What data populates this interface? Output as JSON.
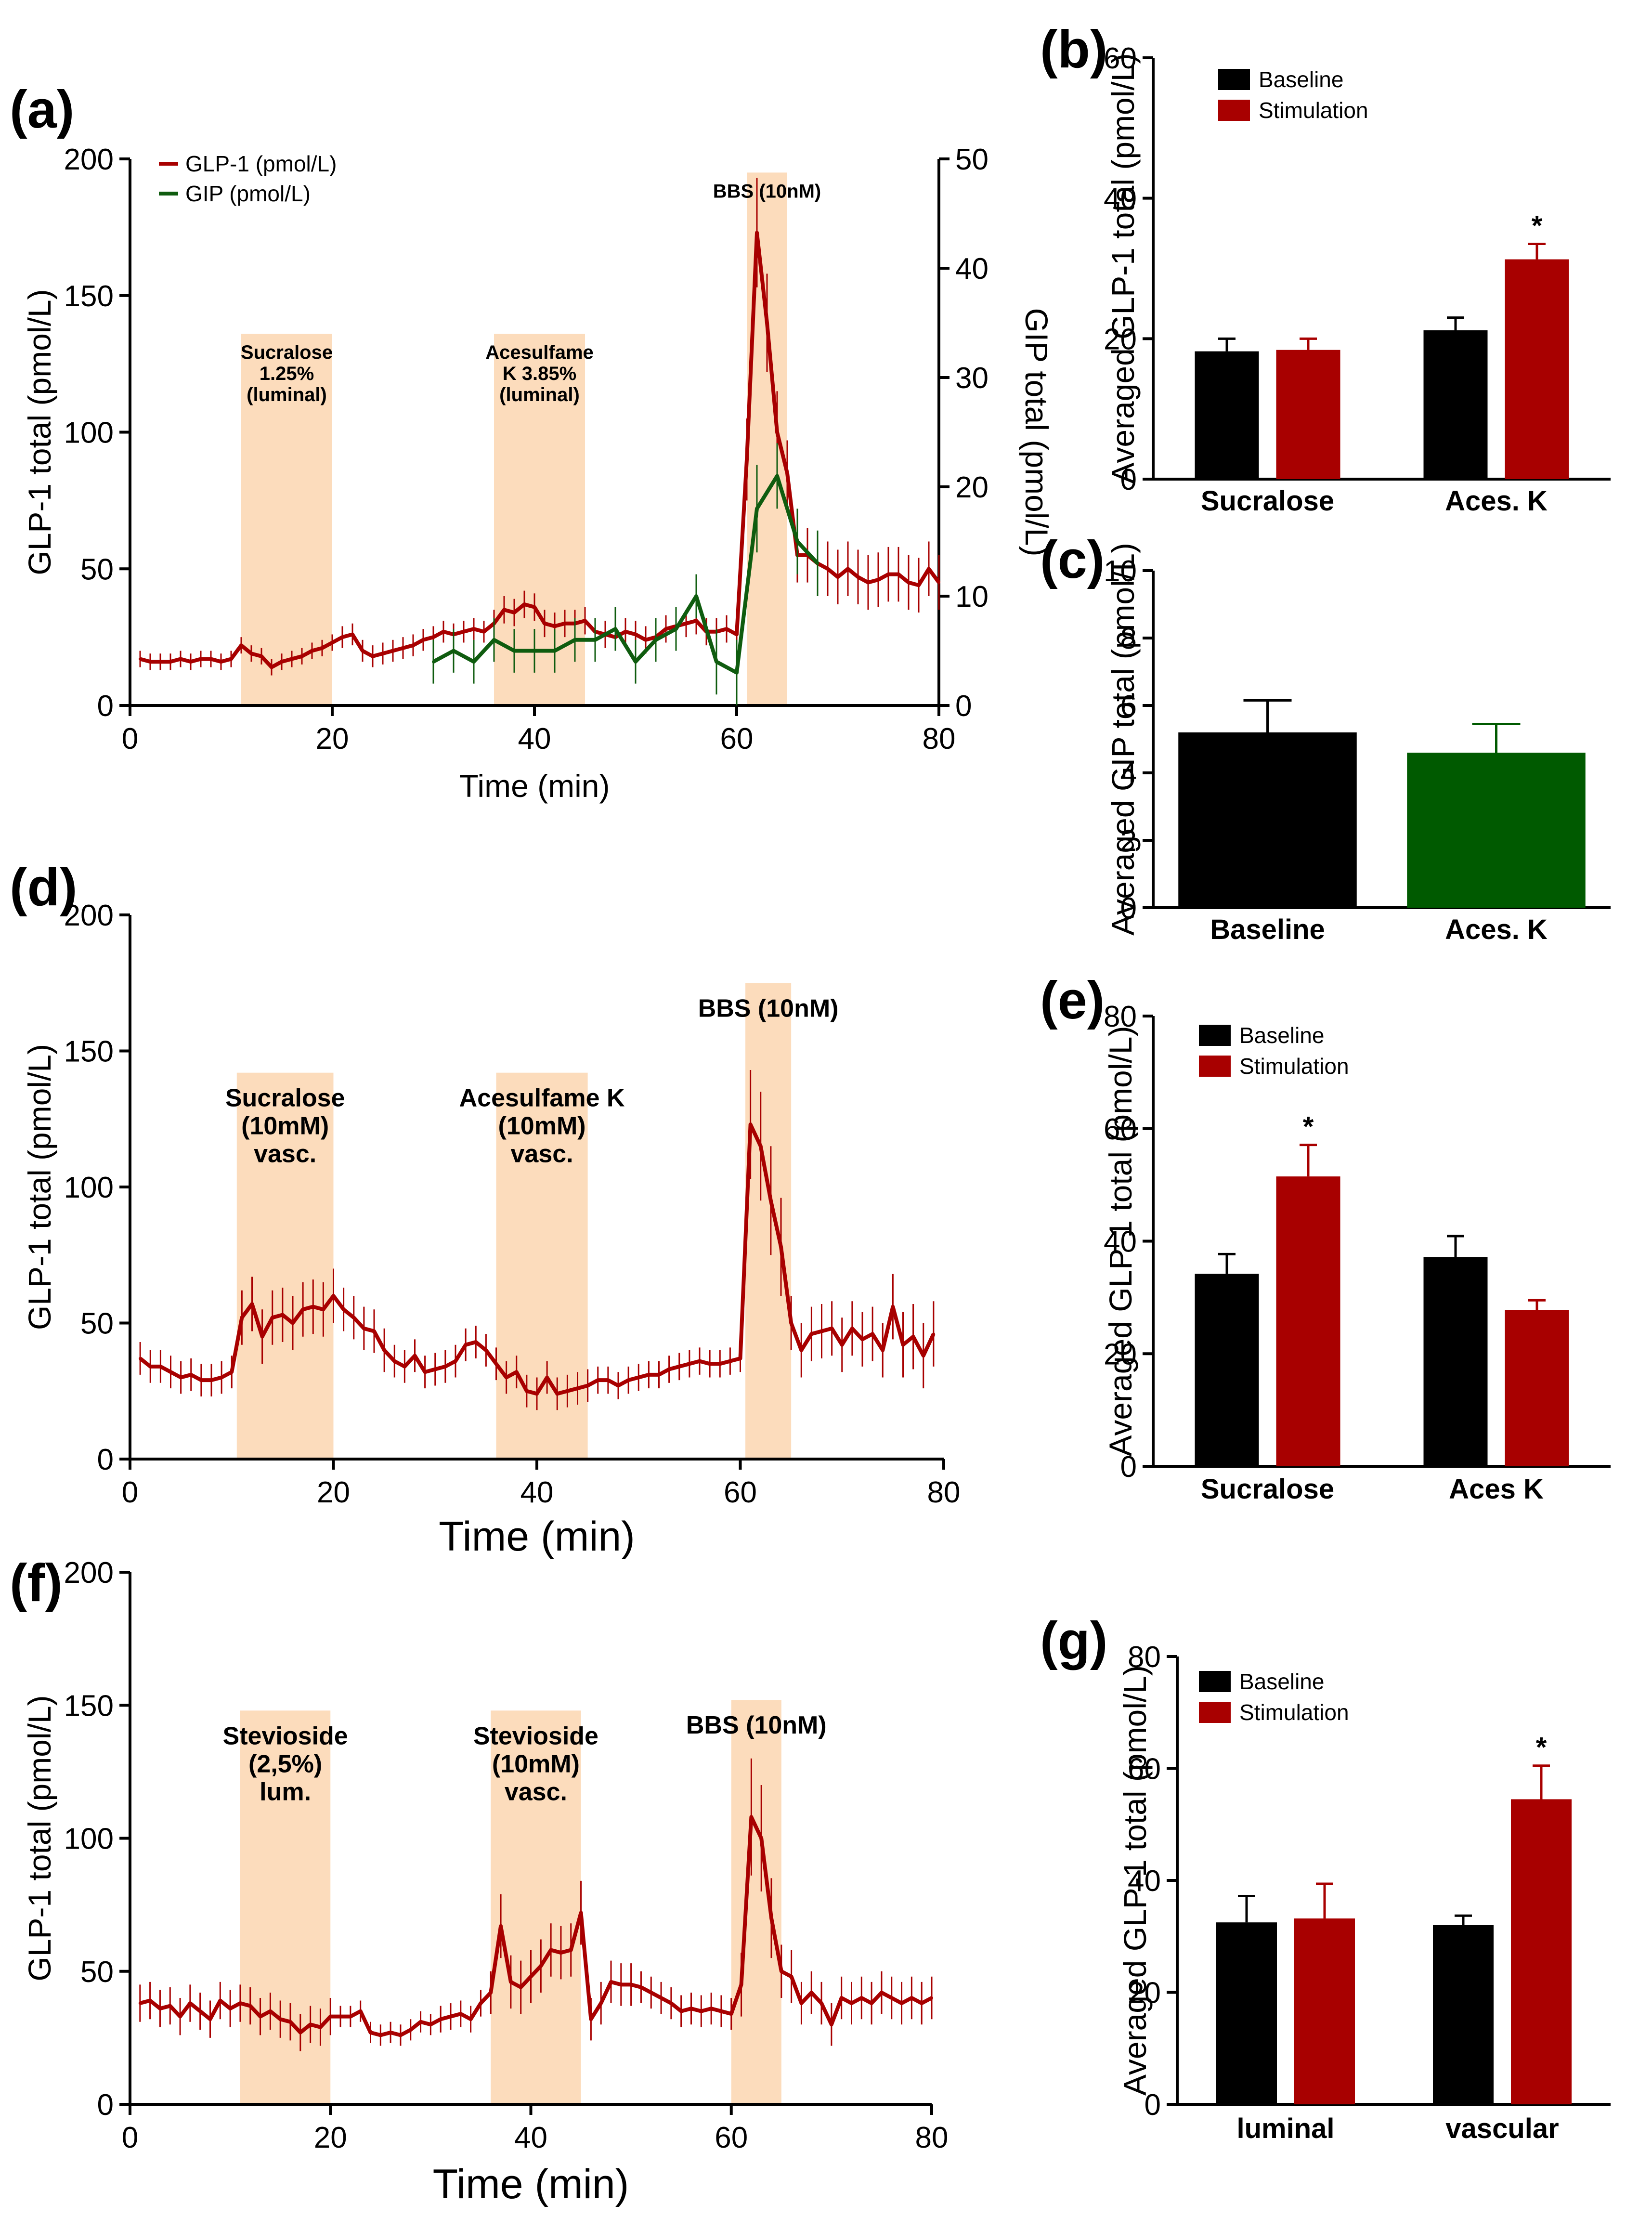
{
  "colors": {
    "glp1": "#a80000",
    "gip": "#0f5c0f",
    "band": "#fcdcbc",
    "baseline": "#000000",
    "stimulation": "#a80000",
    "gip_bar": "#005a00"
  },
  "chart_data": [
    {
      "id": "a",
      "type": "line",
      "letter": "(a)",
      "xlabel": "Time (min)",
      "ylabel": "GLP-1 total (pmol/L)",
      "y2label": "GIP total (pmol/L)",
      "xlim": [
        0,
        80
      ],
      "xticks": [
        0,
        20,
        40,
        60,
        80
      ],
      "ylim": [
        0,
        200
      ],
      "yticks": [
        0,
        50,
        100,
        150,
        200
      ],
      "y2lim": [
        0,
        50
      ],
      "y2ticks": [
        0,
        10,
        20,
        30,
        40,
        50
      ],
      "legend": [
        "GLP-1 (pmol/L)",
        "GIP (pmol/L)"
      ],
      "bands": [
        {
          "x0": 11,
          "x1": 20,
          "top": 136,
          "lines": [
            "Sucralose",
            "1.25%",
            "(luminal)"
          ]
        },
        {
          "x0": 36,
          "x1": 45,
          "top": 136,
          "lines": [
            "Acesulfame",
            "K 3.85%",
            "(luminal)"
          ]
        },
        {
          "x0": 61,
          "x1": 65,
          "top": 195,
          "lines": [
            "BBS (10nM)"
          ]
        }
      ],
      "series": [
        {
          "name": "GLP-1 (pmol/L)",
          "axis": "left",
          "x": [
            1,
            2,
            3,
            4,
            5,
            6,
            7,
            8,
            9,
            10,
            11,
            12,
            13,
            14,
            15,
            16,
            17,
            18,
            19,
            20,
            21,
            22,
            23,
            24,
            25,
            26,
            27,
            28,
            29,
            30,
            31,
            32,
            33,
            34,
            35,
            36,
            37,
            38,
            39,
            40,
            41,
            42,
            43,
            44,
            45,
            46,
            47,
            48,
            49,
            50,
            51,
            52,
            53,
            54,
            55,
            56,
            57,
            58,
            59,
            60,
            61,
            62,
            63,
            64,
            65,
            66,
            67,
            68,
            69,
            70,
            71,
            72,
            73,
            74,
            75,
            76,
            77,
            78,
            79,
            80
          ],
          "y": [
            17,
            16,
            16,
            16,
            17,
            16,
            17,
            17,
            16,
            17,
            22,
            19,
            18,
            14,
            16,
            17,
            18,
            20,
            21,
            23,
            25,
            26,
            20,
            18,
            19,
            20,
            21,
            22,
            24,
            25,
            27,
            26,
            27,
            28,
            27,
            30,
            35,
            34,
            37,
            36,
            30,
            29,
            30,
            30,
            31,
            27,
            26,
            25,
            27,
            26,
            24,
            25,
            28,
            29,
            30,
            31,
            27,
            27,
            28,
            26,
            90,
            173,
            140,
            100,
            85,
            55,
            55,
            52,
            50,
            47,
            50,
            47,
            45,
            46,
            48,
            48,
            45,
            44,
            50,
            45
          ],
          "err": [
            3,
            3,
            3,
            3,
            3,
            3,
            3,
            3,
            3,
            3,
            3,
            3,
            3,
            3,
            3,
            3,
            3,
            3,
            3,
            3,
            4,
            4,
            4,
            4,
            4,
            4,
            4,
            4,
            4,
            4,
            4,
            4,
            4,
            4,
            4,
            5,
            5,
            5,
            5,
            5,
            5,
            5,
            5,
            5,
            5,
            5,
            5,
            5,
            5,
            5,
            5,
            5,
            5,
            5,
            5,
            5,
            5,
            5,
            5,
            5,
            15,
            20,
            18,
            15,
            12,
            10,
            10,
            10,
            10,
            10,
            10,
            10,
            10,
            10,
            10,
            10,
            10,
            10,
            10,
            10
          ]
        },
        {
          "name": "GIP (pmol/L)",
          "axis": "right",
          "x": [
            30,
            32,
            34,
            36,
            38,
            40,
            42,
            44,
            46,
            48,
            50,
            52,
            54,
            56,
            58,
            60,
            62,
            64,
            66,
            68
          ],
          "y": [
            4,
            5,
            4,
            6,
            5,
            5,
            5,
            6,
            6,
            7,
            4,
            6,
            7,
            10,
            4,
            3,
            18,
            21,
            15,
            13
          ],
          "err": [
            2,
            2,
            2,
            2,
            2,
            2,
            2,
            2,
            2,
            2,
            2,
            2,
            2,
            2,
            3,
            3,
            4,
            3,
            3,
            3
          ]
        }
      ]
    },
    {
      "id": "b",
      "type": "bar",
      "letter": "(b)",
      "ylabel": "Averaged GLP-1 total (pmol/L)",
      "ylim": [
        0,
        60
      ],
      "yticks": [
        0,
        20,
        40,
        60
      ],
      "categories": [
        "Sucralose",
        "Aces. K"
      ],
      "legend": [
        "Baseline",
        "Stimulation"
      ],
      "series": [
        {
          "name": "Baseline",
          "values": [
            18.2,
            21.2
          ],
          "err": [
            1.8,
            1.8
          ]
        },
        {
          "name": "Stimulation",
          "values": [
            18.4,
            31.3
          ],
          "err": [
            1.6,
            2.2
          ]
        }
      ],
      "annotations": [
        {
          "text": "*",
          "category": 1,
          "series": 1
        }
      ]
    },
    {
      "id": "c",
      "type": "bar",
      "letter": "(c)",
      "ylabel": "Averaged GIP total (pmol/L)",
      "ylim": [
        0,
        10
      ],
      "yticks": [
        0,
        2,
        4,
        6,
        8,
        10
      ],
      "categories": [
        "Baseline",
        "Aces. K"
      ],
      "values": [
        5.2,
        4.6
      ],
      "err": [
        0.95,
        0.85
      ]
    },
    {
      "id": "d",
      "type": "line",
      "letter": "(d)",
      "xlabel": "Time (min)",
      "ylabel": "GLP-1 total (pmol/L)",
      "xlim": [
        0,
        80
      ],
      "xticks": [
        0,
        20,
        40,
        60,
        80
      ],
      "ylim": [
        0,
        200
      ],
      "yticks": [
        0,
        50,
        100,
        150,
        200
      ],
      "bands": [
        {
          "x0": 10.5,
          "x1": 20,
          "top": 142,
          "lines": [
            "Sucralose",
            "(10mM)",
            "vasc."
          ]
        },
        {
          "x0": 36,
          "x1": 45,
          "top": 142,
          "lines": [
            "Acesulfame K",
            "(10mM)",
            "vasc."
          ]
        },
        {
          "x0": 60.5,
          "x1": 65,
          "top": 175,
          "lines": [
            "BBS (10nM)"
          ]
        }
      ],
      "series": [
        {
          "name": "GLP-1",
          "axis": "left",
          "x": [
            1,
            2,
            3,
            4,
            5,
            6,
            7,
            8,
            9,
            10,
            11,
            12,
            13,
            14,
            15,
            16,
            17,
            18,
            19,
            20,
            21,
            22,
            23,
            24,
            25,
            26,
            27,
            28,
            29,
            30,
            31,
            32,
            33,
            34,
            35,
            36,
            37,
            38,
            39,
            40,
            41,
            42,
            43,
            44,
            45,
            46,
            47,
            48,
            49,
            50,
            51,
            52,
            53,
            54,
            55,
            56,
            57,
            58,
            59,
            60,
            61,
            62,
            63,
            64,
            65,
            66,
            67,
            68,
            69,
            70,
            71,
            72,
            73,
            74,
            75,
            76,
            77,
            78,
            79
          ],
          "y": [
            37,
            34,
            34,
            32,
            30,
            31,
            29,
            29,
            30,
            32,
            52,
            57,
            45,
            52,
            53,
            50,
            55,
            56,
            55,
            60,
            55,
            52,
            48,
            47,
            40,
            36,
            34,
            38,
            32,
            33,
            34,
            36,
            42,
            43,
            40,
            35,
            30,
            32,
            25,
            24,
            30,
            24,
            25,
            26,
            27,
            29,
            29,
            27,
            29,
            30,
            31,
            31,
            33,
            34,
            35,
            36,
            35,
            35,
            36,
            37,
            123,
            115,
            95,
            78,
            50,
            40,
            46,
            47,
            48,
            42,
            48,
            44,
            46,
            40,
            56,
            42,
            45,
            38,
            46
          ],
          "err": [
            6,
            6,
            6,
            6,
            6,
            6,
            6,
            6,
            6,
            6,
            10,
            10,
            10,
            10,
            10,
            10,
            10,
            10,
            10,
            10,
            8,
            8,
            8,
            8,
            8,
            6,
            6,
            6,
            6,
            6,
            6,
            6,
            6,
            6,
            6,
            6,
            6,
            6,
            6,
            6,
            6,
            6,
            6,
            6,
            6,
            5,
            5,
            5,
            5,
            5,
            5,
            5,
            5,
            5,
            5,
            5,
            5,
            5,
            5,
            5,
            20,
            20,
            20,
            18,
            10,
            10,
            10,
            10,
            10,
            10,
            10,
            10,
            10,
            10,
            12,
            12,
            12,
            12,
            12
          ]
        }
      ]
    },
    {
      "id": "e",
      "type": "bar",
      "letter": "(e)",
      "ylabel": "Averaged GLP-1 total (pmol/L)",
      "ylim": [
        0,
        80
      ],
      "yticks": [
        0,
        20,
        40,
        60,
        80
      ],
      "categories": [
        "Sucralose",
        "Aces K"
      ],
      "legend": [
        "Baseline",
        "Stimulation"
      ],
      "series": [
        {
          "name": "Baseline",
          "values": [
            34.2,
            37.2
          ],
          "err": [
            3.5,
            3.7
          ]
        },
        {
          "name": "Stimulation",
          "values": [
            51.5,
            27.8
          ],
          "err": [
            5.6,
            1.7
          ]
        }
      ],
      "annotations": [
        {
          "text": "*",
          "category": 0,
          "series": 1
        }
      ]
    },
    {
      "id": "f",
      "type": "line",
      "letter": "(f)",
      "xlabel": "Time (min)",
      "ylabel": "GLP-1 total (pmol/L)",
      "xlim": [
        0,
        80
      ],
      "xticks": [
        0,
        20,
        40,
        60,
        80
      ],
      "ylim": [
        0,
        200
      ],
      "yticks": [
        0,
        50,
        100,
        150,
        200
      ],
      "bands": [
        {
          "x0": 11,
          "x1": 20,
          "top": 148,
          "lines": [
            "Stevioside",
            "(2,5%)",
            "lum."
          ]
        },
        {
          "x0": 36,
          "x1": 45,
          "top": 148,
          "lines": [
            "Stevioside",
            "(10mM)",
            "vasc."
          ]
        },
        {
          "x0": 60,
          "x1": 65,
          "top": 152,
          "lines": [
            "BBS (10nM)"
          ]
        }
      ],
      "series": [
        {
          "name": "GLP-1",
          "axis": "left",
          "x": [
            1,
            2,
            3,
            4,
            5,
            6,
            7,
            8,
            9,
            10,
            11,
            12,
            13,
            14,
            15,
            16,
            17,
            18,
            19,
            20,
            21,
            22,
            23,
            24,
            25,
            26,
            27,
            28,
            29,
            30,
            31,
            32,
            33,
            34,
            35,
            36,
            37,
            38,
            39,
            40,
            41,
            42,
            43,
            44,
            45,
            46,
            47,
            48,
            49,
            50,
            51,
            52,
            53,
            54,
            55,
            56,
            57,
            58,
            59,
            60,
            61,
            62,
            63,
            64,
            65,
            66,
            67,
            68,
            69,
            70,
            71,
            72,
            73,
            74,
            75,
            76,
            77,
            78,
            79,
            80
          ],
          "y": [
            38,
            39,
            36,
            37,
            33,
            38,
            35,
            32,
            39,
            36,
            38,
            37,
            33,
            35,
            32,
            31,
            27,
            30,
            29,
            33,
            33,
            33,
            35,
            27,
            26,
            27,
            26,
            28,
            31,
            30,
            32,
            33,
            34,
            32,
            38,
            42,
            67,
            46,
            44,
            48,
            52,
            58,
            57,
            58,
            72,
            32,
            38,
            46,
            45,
            45,
            44,
            42,
            40,
            38,
            35,
            36,
            35,
            36,
            35,
            34,
            45,
            108,
            100,
            70,
            50,
            48,
            38,
            42,
            38,
            30,
            40,
            38,
            40,
            38,
            42,
            40,
            38,
            40,
            38,
            40
          ],
          "err": [
            7,
            7,
            7,
            7,
            7,
            7,
            7,
            7,
            7,
            7,
            7,
            7,
            7,
            7,
            7,
            7,
            7,
            7,
            7,
            7,
            4,
            4,
            4,
            4,
            4,
            4,
            4,
            4,
            4,
            4,
            5,
            5,
            5,
            5,
            5,
            8,
            12,
            10,
            10,
            10,
            10,
            10,
            10,
            10,
            12,
            8,
            8,
            8,
            8,
            8,
            6,
            6,
            6,
            6,
            6,
            6,
            6,
            6,
            6,
            6,
            12,
            22,
            20,
            15,
            10,
            10,
            8,
            8,
            8,
            8,
            8,
            8,
            8,
            8,
            8,
            8,
            8,
            8,
            8,
            8
          ]
        }
      ]
    },
    {
      "id": "g",
      "type": "bar",
      "letter": "(g)",
      "ylabel": "Averaged GLP-1 total (pmol/L)",
      "ylim": [
        0,
        80
      ],
      "yticks": [
        0,
        20,
        40,
        60,
        80
      ],
      "categories": [
        "luminal",
        "vascular"
      ],
      "legend": [
        "Baseline",
        "Stimulation"
      ],
      "series": [
        {
          "name": "Baseline",
          "values": [
            32.5,
            32.0
          ],
          "err": [
            4.7,
            1.7
          ]
        },
        {
          "name": "Stimulation",
          "values": [
            33.2,
            54.5
          ],
          "err": [
            6.2,
            6.0
          ]
        }
      ],
      "annotations": [
        {
          "text": "*",
          "category": 1,
          "series": 1
        }
      ]
    }
  ]
}
